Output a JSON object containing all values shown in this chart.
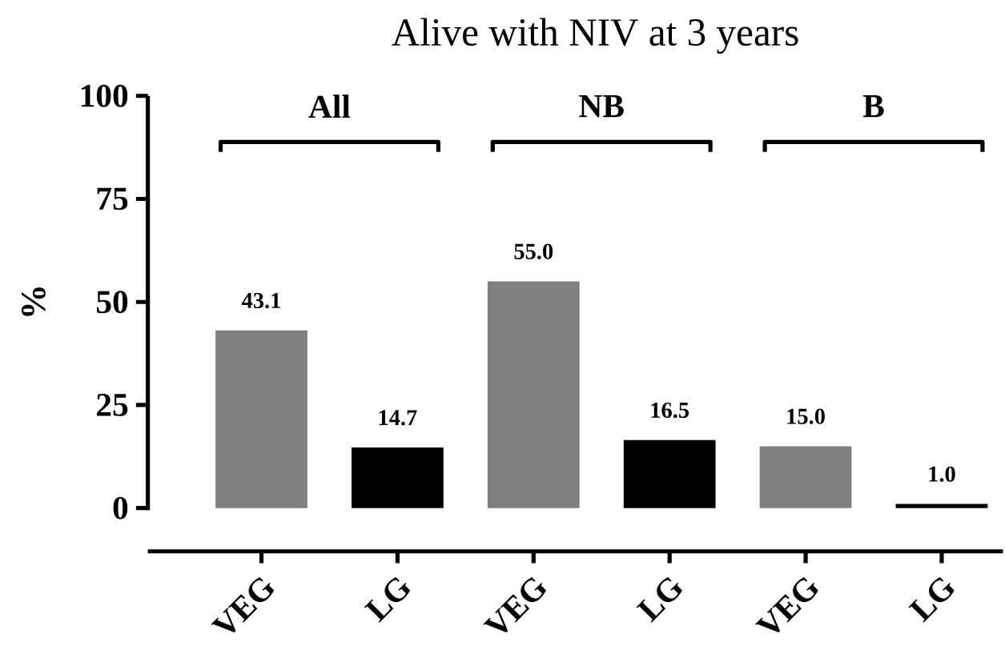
{
  "chart_data": {
    "type": "bar",
    "title": "Alive with NIV at 3 years",
    "ylabel": "%",
    "categories": [
      "VEG",
      "LG",
      "VEG",
      "LG",
      "VEG",
      "LG"
    ],
    "values": [
      43.1,
      14.7,
      55.0,
      16.5,
      15.0,
      1.0
    ],
    "colors": [
      "#7f7f7f",
      "#000000",
      "#7f7f7f",
      "#000000",
      "#7f7f7f",
      "#000000"
    ],
    "value_labels": [
      "43.1",
      "14.7",
      "55.0",
      "16.5",
      "15.0",
      "1.0"
    ],
    "annotations": [
      "All",
      "NB",
      "B"
    ],
    "ylim": [
      0,
      100
    ],
    "yticks": [
      0,
      25,
      50,
      75,
      100
    ],
    "grid": false
  }
}
